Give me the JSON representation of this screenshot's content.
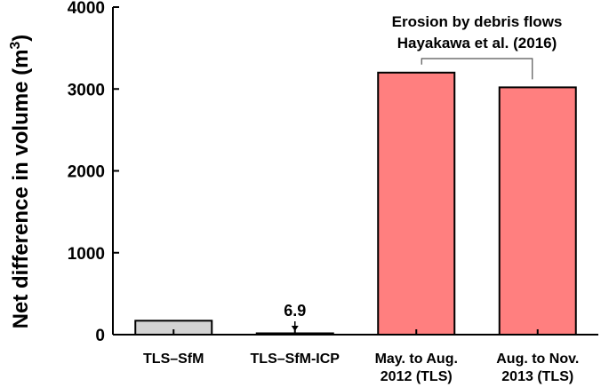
{
  "chart_data": {
    "type": "bar",
    "categories": [
      [
        "TLS–SfM"
      ],
      [
        "TLS–SfM-ICP"
      ],
      [
        "May. to Aug.",
        "2012 (TLS)"
      ],
      [
        "Aug. to Nov.",
        "2013 (TLS)"
      ]
    ],
    "values": [
      170,
      6.9,
      3200,
      3020
    ],
    "bar_colors": [
      "#d3d3d3",
      "#d3d3d3",
      "#ff7f7f",
      "#ff7f7f"
    ],
    "title": "",
    "xlabel": "",
    "ylabel": "Net difference in volume (m",
    "ylabel_sup": "3",
    "ylabel_close": ")",
    "ylim": [
      0,
      4000
    ],
    "yticks": [
      0,
      1000,
      2000,
      3000,
      4000
    ],
    "grid": false,
    "data_labels": [
      {
        "category_index": 1,
        "text": "6.9",
        "arrow": true
      }
    ],
    "annotation": {
      "lines": [
        "Erosion by debris flows",
        "Hayakawa et al. (2016)"
      ],
      "bracket_over": [
        2,
        3
      ]
    }
  }
}
